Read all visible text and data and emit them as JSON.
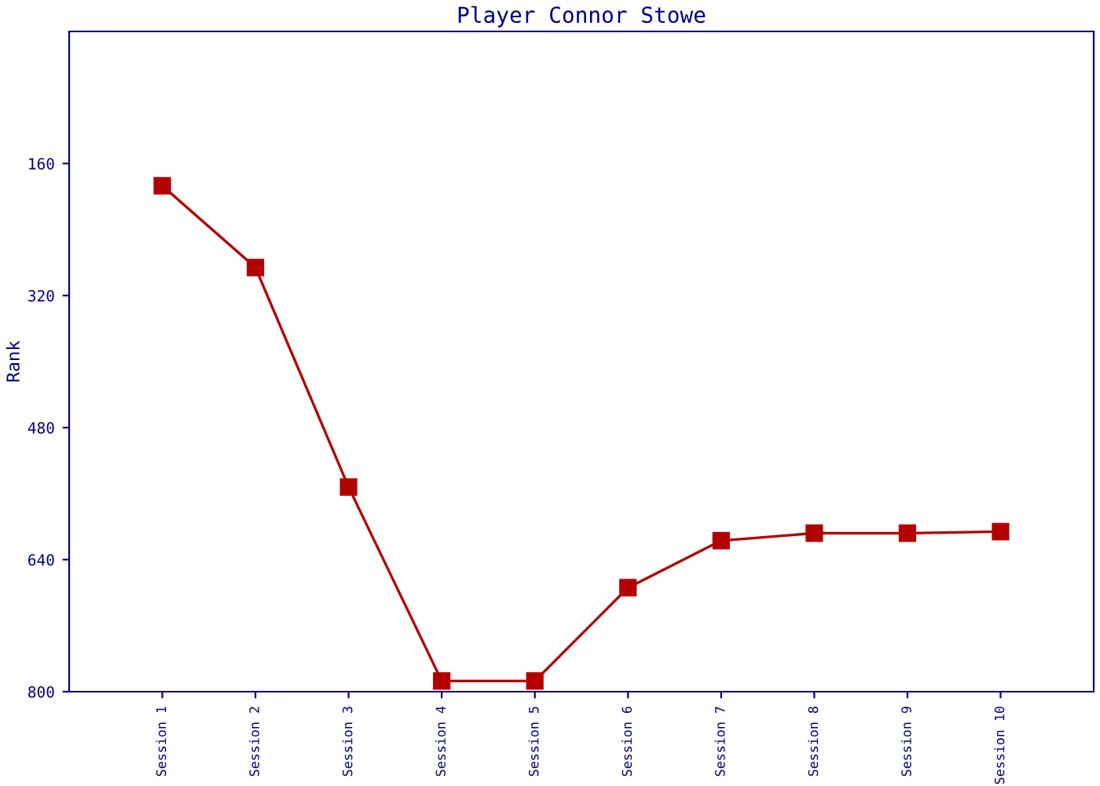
{
  "chart_data": {
    "type": "line",
    "title": "Player Connor Stowe",
    "ylabel": "Rank",
    "categories": [
      "Session 1",
      "Session 2",
      "Session 3",
      "Session 4",
      "Session 5",
      "Session 6",
      "Session 7",
      "Session 8",
      "Session 9",
      "Session 10"
    ],
    "series": [
      {
        "color": "#b40000",
        "values": [
          187,
          286,
          552,
          787,
          787,
          674,
          617,
          608,
          608,
          606
        ]
      }
    ],
    "ylim": [
      800,
      0
    ],
    "yticks": [
      160,
      320,
      480,
      640,
      800
    ],
    "marker": "square",
    "line_style": "solid",
    "grid": false,
    "legend": false
  }
}
